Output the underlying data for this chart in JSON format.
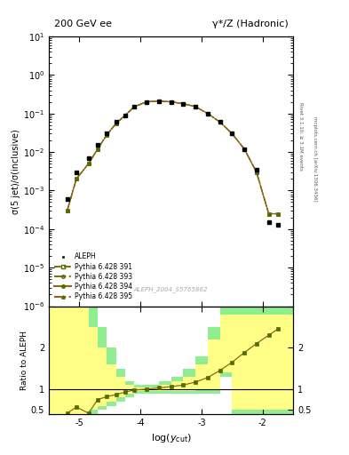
{
  "title_left": "200 GeV ee",
  "title_right": "γ*/Z (Hadronic)",
  "ylabel_main": "σ(5 jet)/σ(inclusive)",
  "ylabel_ratio": "Ratio to ALEPH",
  "xlabel": "log(y_{cut})",
  "watermark": "ALEPH_2004_S5765862",
  "right_label": "Rivet 3.1.10; ≥ 3.1M events",
  "right_label2": "mcplots.cern.ch [arXiv:1306.3436]",
  "log_ycut": [
    -5.2,
    -5.05,
    -4.85,
    -4.7,
    -4.55,
    -4.4,
    -4.25,
    -4.1,
    -3.9,
    -3.7,
    -3.5,
    -3.3,
    -3.1,
    -2.9,
    -2.7,
    -2.5,
    -2.3,
    -2.1,
    -1.9,
    -1.75
  ],
  "aleph_data": [
    0.0006,
    0.003,
    0.007,
    0.015,
    0.03,
    0.06,
    0.09,
    0.15,
    0.2,
    0.21,
    0.2,
    0.18,
    0.15,
    0.1,
    0.06,
    0.03,
    0.012,
    0.0035,
    0.00015,
    0.00013
  ],
  "mc_x": [
    -5.2,
    -5.05,
    -4.85,
    -4.7,
    -4.55,
    -4.4,
    -4.25,
    -4.1,
    -3.9,
    -3.7,
    -3.5,
    -3.3,
    -3.1,
    -2.9,
    -2.7,
    -2.5,
    -2.3,
    -2.1,
    -1.9,
    -1.75
  ],
  "mc_y391": [
    0.0003,
    0.002,
    0.005,
    0.012,
    0.028,
    0.055,
    0.09,
    0.15,
    0.2,
    0.21,
    0.2,
    0.18,
    0.15,
    0.1,
    0.06,
    0.03,
    0.012,
    0.003,
    0.00025,
    0.00025
  ],
  "mc_y393": [
    0.0003,
    0.002,
    0.005,
    0.012,
    0.028,
    0.055,
    0.09,
    0.15,
    0.2,
    0.21,
    0.2,
    0.18,
    0.15,
    0.1,
    0.06,
    0.03,
    0.012,
    0.003,
    0.00025,
    0.00025
  ],
  "mc_y394": [
    0.0003,
    0.002,
    0.005,
    0.012,
    0.028,
    0.055,
    0.09,
    0.15,
    0.2,
    0.21,
    0.2,
    0.18,
    0.15,
    0.1,
    0.06,
    0.03,
    0.012,
    0.003,
    0.00025,
    0.00025
  ],
  "mc_y395": [
    0.0003,
    0.002,
    0.005,
    0.012,
    0.028,
    0.055,
    0.09,
    0.15,
    0.2,
    0.21,
    0.2,
    0.18,
    0.15,
    0.1,
    0.06,
    0.03,
    0.012,
    0.003,
    0.00025,
    0.00025
  ],
  "ratio_x": [
    -5.2,
    -5.05,
    -4.85,
    -4.7,
    -4.55,
    -4.4,
    -4.25,
    -4.1,
    -3.9,
    -3.7,
    -3.5,
    -3.3,
    -3.1,
    -2.9,
    -2.7,
    -2.5,
    -2.3,
    -2.1,
    -1.9,
    -1.75
  ],
  "ratio_y": [
    0.42,
    0.57,
    0.42,
    0.75,
    0.82,
    0.87,
    0.93,
    0.98,
    1.0,
    1.03,
    1.06,
    1.1,
    1.17,
    1.28,
    1.45,
    1.65,
    1.88,
    2.1,
    2.3,
    2.45
  ],
  "band_x_edges": [
    -5.5,
    -5.2,
    -5.05,
    -4.85,
    -4.7,
    -4.55,
    -4.4,
    -4.25,
    -4.1,
    -3.9,
    -3.7,
    -3.5,
    -3.3,
    -3.1,
    -2.9,
    -2.7,
    -2.5,
    -2.3,
    -2.1,
    -1.9,
    -1.75,
    -1.5
  ],
  "green_lo": [
    0.4,
    0.4,
    0.4,
    0.4,
    0.5,
    0.6,
    0.7,
    0.8,
    0.9,
    0.9,
    0.9,
    0.9,
    0.9,
    0.9,
    0.9,
    1.3,
    0.4,
    0.4,
    0.4,
    0.4,
    0.4,
    0.4
  ],
  "green_hi": [
    3.0,
    3.0,
    3.0,
    3.0,
    2.5,
    2.0,
    1.5,
    1.2,
    1.1,
    1.1,
    1.2,
    1.3,
    1.5,
    1.8,
    2.5,
    3.0,
    3.0,
    3.0,
    3.0,
    3.0,
    3.0,
    3.0
  ],
  "yellow_lo": [
    0.4,
    0.4,
    0.4,
    0.5,
    0.6,
    0.7,
    0.8,
    0.9,
    0.95,
    0.95,
    0.95,
    0.95,
    0.95,
    1.0,
    1.0,
    1.4,
    0.5,
    0.5,
    0.5,
    0.5,
    0.5,
    0.5
  ],
  "yellow_hi": [
    3.0,
    3.0,
    3.0,
    2.5,
    2.0,
    1.6,
    1.3,
    1.1,
    1.05,
    1.05,
    1.1,
    1.2,
    1.3,
    1.6,
    2.2,
    2.8,
    2.8,
    2.8,
    2.8,
    2.8,
    2.8,
    2.8
  ],
  "mc_color": "#556b00",
  "aleph_color": "#000000",
  "line_color": "#8B6914",
  "green_color": "#90ee90",
  "yellow_color": "#ffff88",
  "xlim": [
    -5.5,
    -1.5
  ],
  "ylim_main": [
    1e-06,
    10
  ],
  "ylim_ratio": [
    0.4,
    3.0
  ],
  "legend_labels": [
    "ALEPH",
    "Pythia 6.428 391",
    "Pythia 6.428 393",
    "Pythia 6.428 394",
    "Pythia 6.428 395"
  ]
}
